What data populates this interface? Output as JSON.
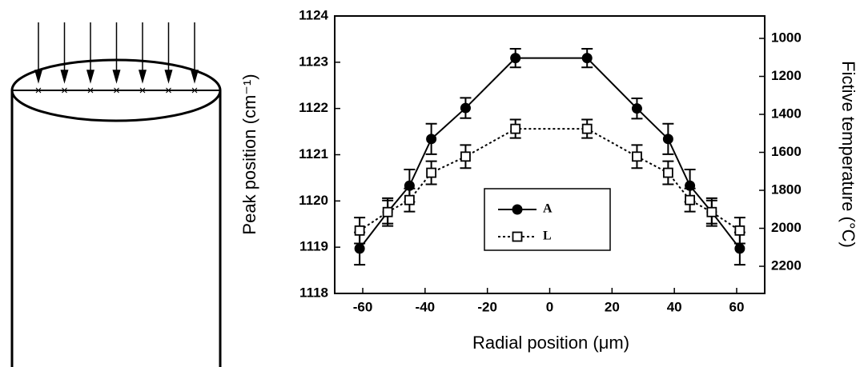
{
  "chart_data": {
    "type": "line",
    "x_label": "Radial position (μm)",
    "y_label": "Peak position (cm⁻¹)",
    "y2_label": "Fictive temperature (°C)",
    "x": [
      -61,
      -52,
      -45,
      -38,
      -27,
      -11,
      12,
      28,
      38,
      45,
      52,
      61
    ],
    "series": [
      {
        "name": "A",
        "color": "#000000",
        "marker": "filled-circle",
        "dash": false,
        "values": [
          1118.97,
          1119.76,
          1120.33,
          1121.34,
          1122.01,
          1123.09,
          1123.09,
          1122.0,
          1121.34,
          1120.33,
          1119.76,
          1118.97
        ],
        "errors": [
          0.35,
          0.3,
          0.35,
          0.33,
          0.22,
          0.2,
          0.2,
          0.22,
          0.33,
          0.35,
          0.3,
          0.35
        ]
      },
      {
        "name": "L",
        "color": "#000000",
        "marker": "open-square",
        "dash": true,
        "values": [
          1119.36,
          1119.76,
          1120.02,
          1120.61,
          1120.96,
          1121.56,
          1121.56,
          1120.96,
          1120.61,
          1120.02,
          1119.76,
          1119.36
        ],
        "errors": [
          0.28,
          0.25,
          0.25,
          0.25,
          0.25,
          0.2,
          0.2,
          0.25,
          0.25,
          0.25,
          0.25,
          0.28
        ]
      }
    ],
    "xlim": [
      -69,
      69
    ],
    "xticks": [
      -60,
      -40,
      -20,
      0,
      20,
      40,
      60
    ],
    "ylim": [
      1118,
      1124
    ],
    "yticks": [
      1118,
      1119,
      1120,
      1121,
      1122,
      1123,
      1124
    ],
    "y2lim": [
      2343,
      882
    ],
    "y2ticks": [
      1000,
      1200,
      1400,
      1600,
      1800,
      2000,
      2200
    ],
    "grid": false
  }
}
